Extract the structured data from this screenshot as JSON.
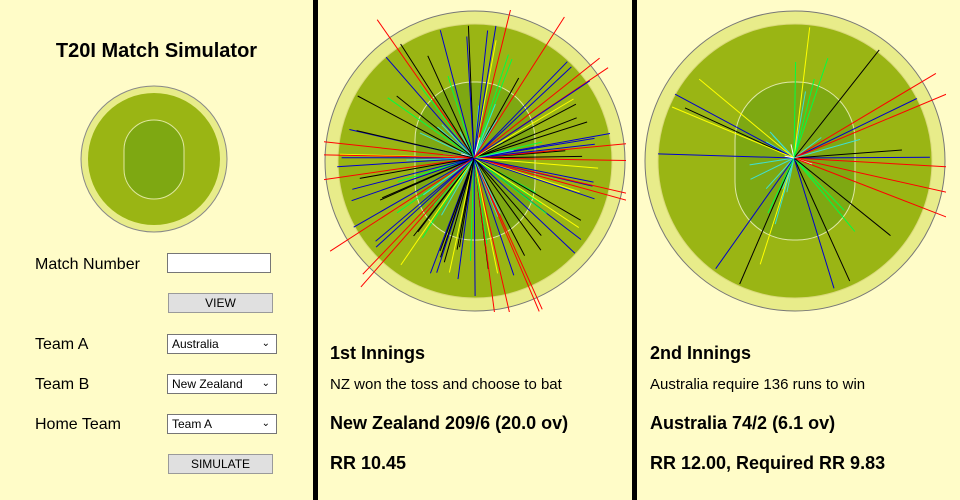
{
  "app": {
    "title": "T20I Match Simulator"
  },
  "form": {
    "match_number": {
      "label": "Match Number",
      "value": ""
    },
    "view_label": "VIEW",
    "team_a": {
      "label": "Team A",
      "value": "Australia"
    },
    "team_b": {
      "label": "Team B",
      "value": "New Zealand"
    },
    "home_team": {
      "label": "Home Team",
      "value": "Team A"
    },
    "simulate_label": "SIMULATE"
  },
  "innings": [
    {
      "title": "1st Innings",
      "status": "NZ won the toss and choose to bat",
      "score": "New Zealand 209/6 (20.0 ov)",
      "run_rate": "RR 10.45"
    },
    {
      "title": "2nd Innings",
      "status": "Australia require 136 runs to win",
      "score": "Australia 74/2 (6.1 ov)",
      "run_rate": "RR 12.00, Required RR 9.83"
    }
  ],
  "colors": {
    "outer_ring": "#e8ec8a",
    "outfield": "#9ab514",
    "infield": "#7ea812",
    "boundary_line": "#d9d97a",
    "pitch_line": "#ffffff",
    "four": "#0000cc",
    "six": "#ff0000",
    "three": "#ffff00",
    "two": "#00ff40",
    "one": "#40e0d0",
    "out": "#000000",
    "dot": "#ffffff"
  }
}
